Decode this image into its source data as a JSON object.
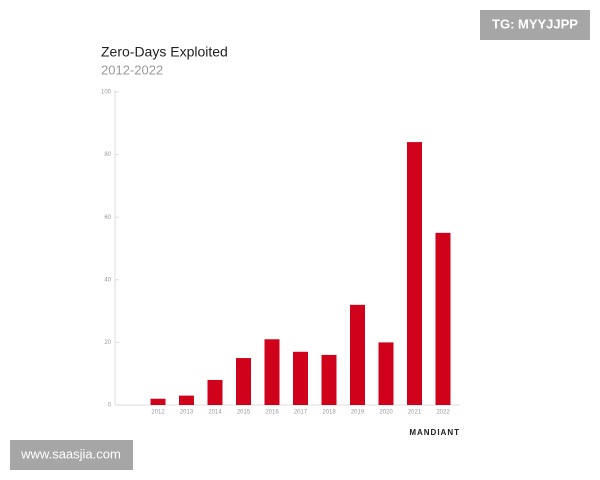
{
  "chart_data": {
    "type": "bar",
    "title": "Zero-Days Exploited",
    "subtitle": "2012-2022",
    "categories": [
      "2012",
      "2013",
      "2014",
      "2015",
      "2016",
      "2017",
      "2018",
      "2019",
      "2020",
      "2021",
      "2022"
    ],
    "values": [
      2,
      3,
      8,
      15,
      21,
      17,
      16,
      32,
      20,
      84,
      55
    ],
    "color": "#d0021b",
    "ylim": [
      0,
      100
    ],
    "yticks": [
      0,
      20,
      40,
      60,
      80,
      100
    ],
    "grid": false,
    "brand": "MANDIANT"
  },
  "watermarks": {
    "top_right": "TG: MYYJJPP",
    "bottom_left": "www.saasjia.com"
  }
}
